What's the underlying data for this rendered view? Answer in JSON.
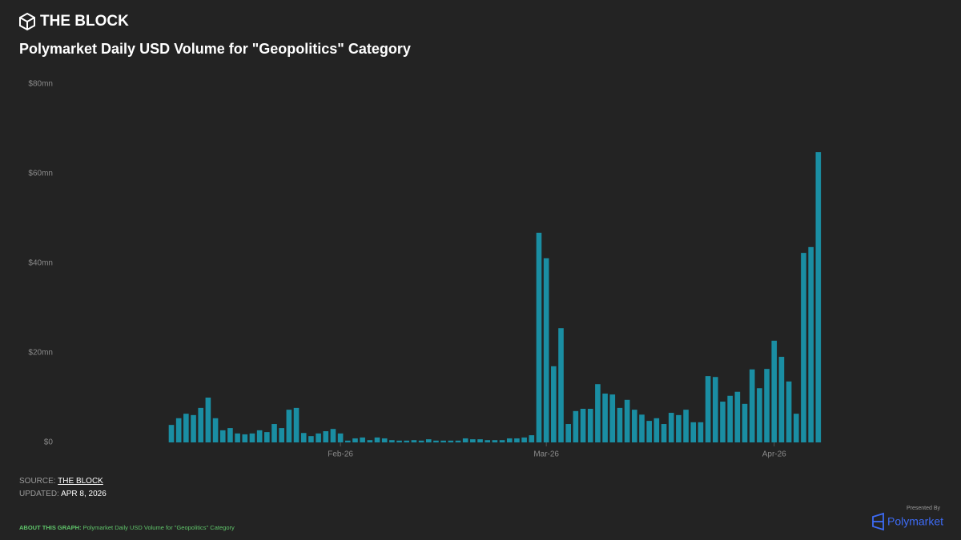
{
  "brand": "THE BLOCK",
  "chart_data": {
    "type": "bar",
    "title": "Polymarket Daily USD Volume for \"Geopolitics\" Category",
    "categories": [
      null,
      null,
      null,
      null,
      null,
      null,
      null,
      null,
      null,
      null,
      null,
      null,
      null,
      null,
      null,
      null,
      null,
      null,
      null,
      null,
      null,
      null,
      null,
      "Feb-26",
      null,
      null,
      null,
      null,
      null,
      null,
      null,
      null,
      null,
      null,
      null,
      null,
      null,
      null,
      null,
      null,
      null,
      null,
      null,
      null,
      null,
      null,
      null,
      null,
      null,
      null,
      null,
      "Mar-26",
      null,
      null,
      null,
      null,
      null,
      null,
      null,
      null,
      null,
      null,
      null,
      null,
      null,
      null,
      null,
      null,
      null,
      null,
      null,
      null,
      null,
      null,
      null,
      null,
      null,
      null,
      null,
      null,
      null,
      null,
      "Apr-26",
      null,
      null,
      null,
      null,
      null,
      null
    ],
    "values": [
      3.9,
      5.4,
      6.4,
      6.1,
      7.7,
      10,
      5.4,
      2.7,
      3.2,
      2,
      1.8,
      2,
      2.7,
      2.3,
      4.1,
      3.2,
      7.3,
      7.7,
      2.1,
      1.4,
      2,
      2.5,
      3,
      2,
      0.4,
      0.9,
      1.1,
      0.5,
      1.1,
      0.9,
      0.5,
      0.4,
      0.4,
      0.5,
      0.4,
      0.7,
      0.4,
      0.4,
      0.4,
      0.4,
      0.9,
      0.7,
      0.7,
      0.5,
      0.5,
      0.5,
      0.9,
      0.9,
      1.1,
      1.6,
      46.8,
      41.1,
      17,
      25.5,
      4.1,
      7,
      7.5,
      7.5,
      13,
      10.9,
      10.7,
      7.7,
      9.5,
      7.3,
      6.2,
      4.8,
      5.4,
      4.1,
      6.6,
      6.1,
      7.3,
      4.5,
      4.5,
      14.8,
      14.6,
      9.1,
      10.4,
      11.3,
      8.6,
      16.3,
      12.1,
      16.4,
      22.7,
      19.1,
      13.6,
      6.4,
      42.3,
      43.6,
      64.8
    ],
    "color": "#1a8ea3",
    "ylim": [
      0,
      80
    ],
    "yticks": [
      {
        "value": 0,
        "label": "$0"
      },
      {
        "value": 20,
        "label": "$20mn"
      },
      {
        "value": 40,
        "label": "$40mn"
      },
      {
        "value": 60,
        "label": "$60mn"
      },
      {
        "value": 80,
        "label": "$80mn"
      }
    ],
    "grid": false
  },
  "footer": {
    "source_label": "SOURCE:",
    "source": "THE BLOCK",
    "updated_label": "UPDATED:",
    "updated": "APR 8, 2026",
    "about_label": "ABOUT THIS GRAPH:",
    "about": "Polymarket Daily USD Volume for \"Geopolitics\" Category",
    "presented_by": "Presented By",
    "sponsor": "Polymarket"
  }
}
